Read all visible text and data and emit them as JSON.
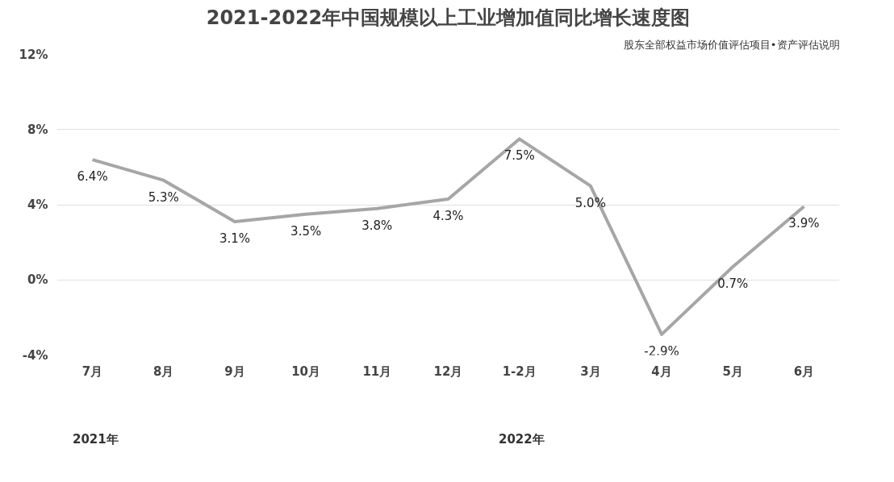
{
  "chart_data": {
    "type": "line",
    "title": "2021-2022年中国规模以上工业增加值同比增长速度图",
    "categories": [
      "7月",
      "8月",
      "9月",
      "10月",
      "11月",
      "12月",
      "1-2月",
      "3月",
      "4月",
      "5月",
      "6月"
    ],
    "series": [
      {
        "color": "#a6a6a6",
        "values": [
          6.4,
          5.3,
          3.1,
          3.5,
          3.8,
          4.3,
          7.5,
          5.0,
          -2.9,
          0.7,
          3.9
        ],
        "value_labels": [
          "6.4%",
          "5.3%",
          "3.1%",
          "3.5%",
          "3.8%",
          "4.3%",
          "7.5%",
          "5.0%",
          "-2.9%",
          "0.7%",
          "3.9%"
        ]
      }
    ],
    "ylim": [
      -4,
      12
    ],
    "yticks": [
      {
        "value": -4,
        "label": "-4%"
      },
      {
        "value": 0,
        "label": "0%"
      },
      {
        "value": 4,
        "label": "4%"
      },
      {
        "value": 8,
        "label": "8%"
      },
      {
        "value": 12,
        "label": "12%"
      }
    ],
    "grid": "y",
    "marker": "none",
    "line_style": "solid",
    "annotations": [
      "股东全部权益市场价值评估项目•资产评估说明",
      "2021年",
      "2022年"
    ]
  }
}
